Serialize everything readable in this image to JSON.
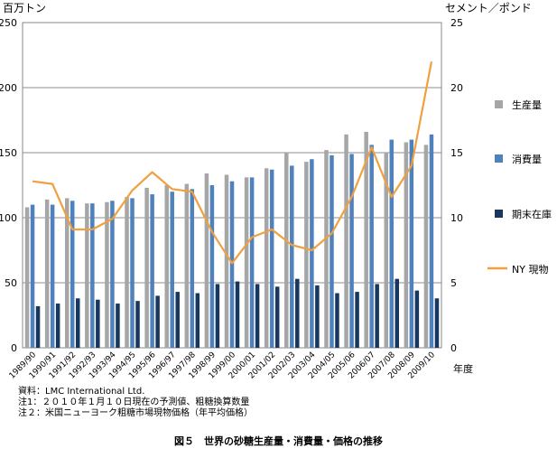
{
  "chart_data": {
    "type": "bar",
    "categories": [
      "1989/90",
      "1990/91",
      "1991/92",
      "1992/93",
      "1993/94",
      "1994/95",
      "1995/96",
      "1996/97",
      "1997/98",
      "1998/99",
      "1999/00",
      "2000/01",
      "2001/02",
      "2002/03",
      "2003/04",
      "2004/05",
      "2005/06",
      "2006/07",
      "2007/08",
      "2008/09",
      "2009/10"
    ],
    "y_left_label": "百万トン",
    "y_right_label": "セメント／ポンド",
    "x_label": "年度",
    "ylim": [
      0,
      250
    ],
    "ylim_right": [
      0,
      25
    ],
    "y_left_ticks": [
      "0",
      "50",
      "100",
      "150",
      "200",
      "250"
    ],
    "y_right_ticks": [
      "0",
      "5",
      "10",
      "15",
      "20",
      "25"
    ],
    "legend_position": "right",
    "grid": true,
    "series": [
      {
        "name": "生産量",
        "type": "bar",
        "axis": "left",
        "color": "#a6a6a6",
        "values": [
          108,
          114,
          115,
          111,
          112,
          116,
          123,
          125,
          126,
          134,
          133,
          131,
          138,
          150,
          143,
          152,
          164,
          166,
          150,
          158,
          156
        ]
      },
      {
        "name": "消費量",
        "type": "bar",
        "axis": "left",
        "color": "#4f81bd",
        "values": [
          110,
          110,
          113,
          111,
          113,
          115,
          118,
          120,
          122,
          125,
          128,
          131,
          137,
          140,
          145,
          148,
          149,
          156,
          160,
          160,
          164
        ]
      },
      {
        "name": "期末在庫",
        "type": "bar",
        "axis": "left",
        "color": "#17375e",
        "values": [
          32,
          34,
          38,
          37,
          34,
          36,
          40,
          43,
          42,
          49,
          51,
          49,
          47,
          53,
          48,
          42,
          43,
          49,
          53,
          44,
          38
        ]
      },
      {
        "name": "NY 現物",
        "type": "line",
        "axis": "right",
        "color": "#f0a040",
        "values": [
          12.8,
          12.6,
          9.1,
          9.1,
          9.9,
          12.1,
          13.5,
          12.2,
          12.0,
          8.9,
          6.5,
          8.5,
          9.1,
          7.9,
          7.5,
          8.8,
          11.6,
          15.4,
          11.6,
          14.0,
          22.0
        ]
      }
    ]
  },
  "notes": {
    "source": "資料：LMC International Ltd.",
    "note1": "注1：２０１０年１月１０日現在の予測値、粗糖換算数量",
    "note2": "注２：米国ニューヨーク粗糖市場現物価格（年平均価格）"
  },
  "caption": "図５　世界の砂糖生産量・消費量・価格の推移"
}
